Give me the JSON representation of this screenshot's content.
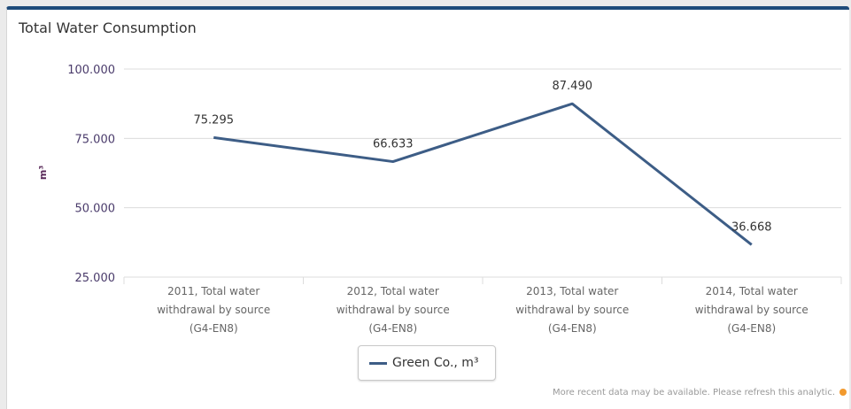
{
  "panel": {
    "title": "Total Water Consumption",
    "footnote": "More recent data may be available. Please refresh this analytic."
  },
  "colors": {
    "header_border": "#1e4b7a",
    "series_line": "#3d5d86",
    "footnote_dot": "#f29a2e"
  },
  "chart_data": {
    "type": "line",
    "title": "Total Water Consumption",
    "ylabel": "m³",
    "xlabel": "",
    "ylim": [
      25000,
      100000
    ],
    "yticks": [
      25000,
      50000,
      75000,
      100000
    ],
    "ytick_labels": [
      "25.000",
      "50.000",
      "75.000",
      "100.000"
    ],
    "categories": [
      [
        "2011, Total water",
        "withdrawal by source",
        "(G4-EN8)"
      ],
      [
        "2012, Total water",
        "withdrawal by source",
        "(G4-EN8)"
      ],
      [
        "2013, Total water",
        "withdrawal by source",
        "(G4-EN8)"
      ],
      [
        "2014, Total water",
        "withdrawal by source",
        "(G4-EN8)"
      ]
    ],
    "series": [
      {
        "name": "Green Co., m³",
        "values": [
          75295,
          66633,
          87490,
          36668
        ],
        "labels": [
          "75.295",
          "66.633",
          "87.490",
          "36.668"
        ]
      }
    ],
    "grid": true,
    "legend": "bottom-center"
  }
}
